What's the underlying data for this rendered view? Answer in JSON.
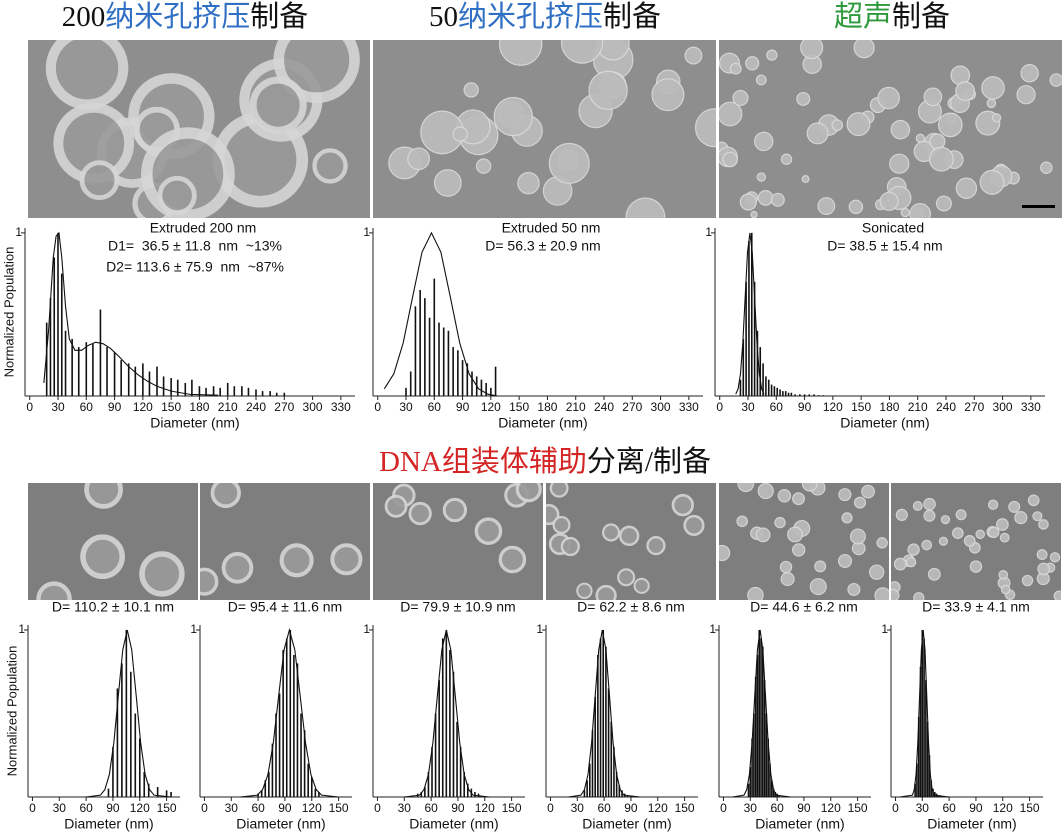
{
  "headers": [
    [
      {
        "text": "200",
        "color": "#111111"
      },
      {
        "text": "纳米孔挤压",
        "color": "#2f6fc4"
      },
      {
        "text": "制备",
        "color": "#111111"
      }
    ],
    [
      {
        "text": "50",
        "color": "#111111"
      },
      {
        "text": "纳米孔挤压",
        "color": "#2f6fc4"
      },
      {
        "text": "制备",
        "color": "#111111"
      }
    ],
    [
      {
        "text": "超声",
        "color": "#2e9a3c"
      },
      {
        "text": "制备",
        "color": "#111111"
      }
    ],
    [
      {
        "text": "DNA组装体辅助",
        "color": "#d42424"
      },
      {
        "text": "分离/制备",
        "color": "#111111"
      }
    ]
  ],
  "chart_data": [
    {
      "type": "bar",
      "title": "Extruded 200 nm",
      "annotations": [
        "D1=  36.5 ± 11.8  nm  ~13%",
        "D2= 113.6 ± 75.9  nm  ~87%"
      ],
      "annotation_color": "#d42424",
      "ylabel": "Normalized Population",
      "xlabel": "Diameter (nm)",
      "color": "#111111",
      "x": [
        18,
        22,
        26,
        30,
        34,
        38,
        45,
        52,
        60,
        67,
        75,
        82,
        90,
        97,
        105,
        112,
        120,
        127,
        135,
        142,
        150,
        157,
        165,
        172,
        180,
        187,
        195,
        202,
        210,
        217,
        225,
        232,
        240,
        247,
        255,
        262,
        270
      ],
      "values": [
        0.45,
        0.6,
        0.85,
        1,
        0.75,
        0.4,
        0.35,
        0.3,
        0.33,
        0.32,
        0.53,
        0.3,
        0.27,
        0.22,
        0.2,
        0.18,
        0.2,
        0.15,
        0.18,
        0.12,
        0.11,
        0.1,
        0.08,
        0.1,
        0.06,
        0.05,
        0.06,
        0.05,
        0.08,
        0.06,
        0.06,
        0.05,
        0.04,
        0.03,
        0.03,
        0.02,
        0.02
      ],
      "fit": {
        "type": "line",
        "x": [
          15,
          20,
          25,
          28,
          31,
          34,
          38,
          42,
          48,
          55,
          62,
          70,
          78,
          86,
          95,
          105,
          115,
          125,
          135,
          150,
          170,
          200
        ],
        "values": [
          0.08,
          0.4,
          0.85,
          0.98,
          1,
          0.85,
          0.55,
          0.35,
          0.28,
          0.28,
          0.31,
          0.33,
          0.32,
          0.29,
          0.24,
          0.18,
          0.13,
          0.09,
          0.06,
          0.03,
          0.01,
          0.005
        ]
      },
      "xlim": [
        -5,
        345
      ],
      "xticks": [
        0,
        30,
        60,
        90,
        120,
        150,
        180,
        210,
        240,
        270,
        300,
        330
      ],
      "ylim": [
        0,
        1.03
      ],
      "yticks": [
        1
      ]
    },
    {
      "type": "bar",
      "title": "Extruded 50 nm",
      "annotations": [
        "D= 56.3 ± 20.9 nm"
      ],
      "annotation_color": "#d42424",
      "xlabel": "Diameter (nm)",
      "color": "#111111",
      "x": [
        30,
        35,
        40,
        45,
        50,
        55,
        60,
        65,
        70,
        75,
        80,
        85,
        90,
        95,
        100,
        105,
        110,
        115,
        120,
        125
      ],
      "values": [
        0.05,
        0.15,
        0.55,
        0.65,
        0.6,
        0.48,
        0.72,
        0.45,
        0.42,
        0.4,
        0.3,
        0.28,
        0.22,
        0.2,
        0.15,
        0.12,
        0.1,
        0.08,
        0.05,
        0.18
      ],
      "fit": {
        "type": "line",
        "x": [
          7,
          17,
          27,
          37,
          47,
          57,
          67,
          77,
          87,
          97,
          107,
          117,
          127
        ],
        "values": [
          0.044,
          0.135,
          0.325,
          0.607,
          0.882,
          1,
          0.882,
          0.607,
          0.325,
          0.135,
          0.044,
          0.011,
          0
        ]
      },
      "xlim": [
        -5,
        345
      ],
      "xticks": [
        0,
        30,
        60,
        90,
        120,
        150,
        180,
        210,
        240,
        270,
        300,
        330
      ],
      "ylim": [
        0,
        1.03
      ],
      "yticks": [
        1
      ]
    },
    {
      "type": "bar",
      "title": "Sonicated",
      "annotations": [
        "D= 38.5 ± 15.4 nm"
      ],
      "annotation_color": "#d42424",
      "xlabel": "Diameter (nm)",
      "color": "#111111",
      "x": [
        22,
        25,
        28,
        31,
        34,
        37,
        40,
        43,
        46,
        49,
        52,
        55,
        58,
        61,
        64,
        67,
        70,
        73,
        76,
        80,
        85,
        90,
        95,
        100,
        105,
        110
      ],
      "values": [
        0.1,
        0.35,
        0.7,
        0.95,
        1,
        0.7,
        0.4,
        0.3,
        0.2,
        0.12,
        0.1,
        0.07,
        0.06,
        0.05,
        0.04,
        0.03,
        0.03,
        0.02,
        0.02,
        0.01,
        0.01,
        0.01,
        0.01,
        0.01,
        0.005,
        0.005
      ],
      "fit": {
        "type": "line",
        "x": [
          17,
          19.5,
          22,
          24.5,
          27,
          29.5,
          32,
          34.5,
          37,
          39.5,
          42,
          44.5,
          47
        ],
        "values": [
          0.011,
          0.044,
          0.135,
          0.325,
          0.607,
          0.882,
          1,
          0.882,
          0.607,
          0.325,
          0.135,
          0.044,
          0.011
        ]
      },
      "xlim": [
        -5,
        345
      ],
      "xticks": [
        0,
        30,
        60,
        90,
        120,
        150,
        180,
        210,
        240,
        270,
        300,
        330
      ],
      "ylim": [
        0,
        1.03
      ],
      "yticks": [
        1
      ]
    },
    {
      "type": "bar",
      "annotations": [
        "D= 110.2 ± 10.1 nm"
      ],
      "annotation_color": "#111111",
      "ylabel": "Normalized Population",
      "xlabel": "Diameter (nm)",
      "color": "#111111",
      "x": [
        85,
        90,
        95,
        100,
        105,
        110,
        115,
        120,
        125,
        130,
        140,
        150,
        155
      ],
      "values": [
        0.05,
        0.3,
        0.65,
        0.8,
        1,
        0.75,
        0.5,
        0.35,
        0.15,
        0.08,
        0.06,
        0.04,
        0.03
      ],
      "fit": {
        "type": "line",
        "x": [
          60,
          76,
          81,
          86,
          91,
          96,
          101,
          106,
          111,
          116,
          121,
          126,
          131,
          136,
          155
        ],
        "values": [
          0,
          0.011,
          0.044,
          0.135,
          0.325,
          0.607,
          0.882,
          1,
          0.882,
          0.607,
          0.325,
          0.135,
          0.044,
          0.011,
          0
        ]
      },
      "xlim": [
        -5,
        165
      ],
      "xticks": [
        0,
        30,
        60,
        90,
        120,
        150
      ],
      "ylim": [
        0,
        1.03
      ],
      "yticks": [
        1
      ]
    },
    {
      "type": "bar",
      "annotations": [
        "D= 95.4 ± 11.6 nm"
      ],
      "annotation_color": "#111111",
      "xlabel": "Diameter (nm)",
      "color": "#111111",
      "x": [
        60,
        64,
        68,
        72,
        76,
        80,
        84,
        88,
        92,
        96,
        100,
        104,
        108,
        112,
        116,
        120,
        124,
        128
      ],
      "values": [
        0.02,
        0.04,
        0.1,
        0.15,
        0.32,
        0.5,
        0.62,
        0.88,
        0.95,
        1,
        0.85,
        0.8,
        0.5,
        0.4,
        0.2,
        0.12,
        0.05,
        0.03
      ],
      "fit": {
        "type": "line",
        "x": [
          40,
          59,
          65,
          71,
          77,
          83,
          89,
          95,
          101,
          107,
          113,
          119,
          125,
          131,
          150
        ],
        "values": [
          0,
          0.011,
          0.044,
          0.135,
          0.325,
          0.607,
          0.882,
          1,
          0.882,
          0.607,
          0.325,
          0.135,
          0.044,
          0.011,
          0
        ]
      },
      "xlim": [
        -5,
        165
      ],
      "xticks": [
        0,
        30,
        60,
        90,
        120,
        150
      ],
      "ylim": [
        0,
        1.03
      ],
      "yticks": [
        1
      ]
    },
    {
      "type": "bar",
      "annotations": [
        "D= 79.9 ± 10.9 nm"
      ],
      "annotation_color": "#111111",
      "xlabel": "Diameter (nm)",
      "color": "#111111",
      "x": [
        45,
        49,
        53,
        57,
        61,
        65,
        69,
        73,
        77,
        81,
        85,
        89,
        93,
        97,
        101,
        105,
        109,
        113
      ],
      "values": [
        0.02,
        0.03,
        0.06,
        0.15,
        0.3,
        0.5,
        0.7,
        0.95,
        1,
        0.88,
        0.75,
        0.45,
        0.3,
        0.15,
        0.08,
        0.05,
        0.03,
        0.02
      ],
      "fit": {
        "type": "line",
        "x": [
          30,
          47,
          52,
          57,
          62,
          67,
          72,
          77,
          82,
          87,
          92,
          97,
          102,
          107,
          125
        ],
        "values": [
          0,
          0.011,
          0.044,
          0.135,
          0.325,
          0.607,
          0.882,
          1,
          0.882,
          0.607,
          0.325,
          0.135,
          0.044,
          0.011,
          0
        ]
      },
      "xlim": [
        -5,
        165
      ],
      "xticks": [
        0,
        30,
        60,
        90,
        120,
        150
      ],
      "ylim": [
        0,
        1.03
      ],
      "yticks": [
        1
      ]
    },
    {
      "type": "bar",
      "annotations": [
        "D= 62.2 ± 8.6 nm"
      ],
      "annotation_color": "#111111",
      "xlabel": "Diameter (nm)",
      "color": "#111111",
      "x": [
        38,
        41,
        44,
        47,
        50,
        53,
        56,
        59,
        62,
        65,
        68,
        71,
        74,
        77,
        80,
        83,
        86
      ],
      "values": [
        0.04,
        0.1,
        0.2,
        0.4,
        0.6,
        0.85,
        0.95,
        1,
        0.9,
        0.65,
        0.45,
        0.3,
        0.15,
        0.07,
        0.04,
        0.02,
        0.01
      ],
      "fit": {
        "type": "line",
        "x": [
          20,
          34,
          38,
          42,
          46,
          50,
          54,
          58,
          62,
          66,
          70,
          74,
          78,
          82,
          100
        ],
        "values": [
          0,
          0.011,
          0.044,
          0.135,
          0.325,
          0.607,
          0.882,
          1,
          0.882,
          0.607,
          0.325,
          0.135,
          0.044,
          0.011,
          0
        ]
      },
      "xlim": [
        -5,
        165
      ],
      "xticks": [
        0,
        30,
        60,
        90,
        120,
        150
      ],
      "ylim": [
        0,
        1.03
      ],
      "yticks": [
        1
      ]
    },
    {
      "type": "bar",
      "annotations": [
        "D= 44.6 ± 6.2 nm"
      ],
      "annotation_color": "#111111",
      "xlabel": "Diameter (nm)",
      "color": "#111111",
      "x": [
        28,
        30,
        32,
        34,
        36,
        38,
        40,
        42,
        44,
        46,
        48,
        50,
        52,
        54,
        56,
        58,
        60,
        62
      ],
      "values": [
        0.08,
        0.18,
        0.35,
        0.5,
        0.72,
        0.85,
        1,
        0.95,
        0.9,
        0.7,
        0.5,
        0.35,
        0.2,
        0.1,
        0.05,
        0.03,
        0.02,
        0.01
      ],
      "fit": {
        "type": "line",
        "x": [
          10,
          23,
          26,
          29,
          32,
          35,
          38,
          41,
          44,
          47,
          50,
          53,
          56,
          59,
          75
        ],
        "values": [
          0,
          0.011,
          0.044,
          0.135,
          0.325,
          0.607,
          0.882,
          1,
          0.882,
          0.607,
          0.325,
          0.135,
          0.044,
          0.011,
          0
        ]
      },
      "xlim": [
        -5,
        165
      ],
      "xticks": [
        0,
        30,
        60,
        90,
        120,
        150
      ],
      "ylim": [
        0,
        1.03
      ],
      "yticks": [
        1
      ]
    },
    {
      "type": "bar",
      "annotations": [
        "D= 33.9 ± 4.1 nm"
      ],
      "annotation_color": "#111111",
      "xlabel": "Diameter (nm)",
      "color": "#111111",
      "x": [
        22,
        24,
        26,
        28,
        30,
        32,
        34,
        36,
        38,
        40,
        42,
        44,
        46,
        48,
        50
      ],
      "values": [
        0.08,
        0.2,
        0.48,
        0.78,
        1,
        0.95,
        0.7,
        0.45,
        0.25,
        0.1,
        0.05,
        0.03,
        0.02,
        0.01,
        0.01
      ],
      "fit": {
        "type": "line",
        "x": [
          5,
          19,
          21,
          23,
          25,
          27,
          29,
          31,
          33,
          35,
          37,
          39,
          41,
          43,
          60
        ],
        "values": [
          0,
          0.011,
          0.044,
          0.135,
          0.325,
          0.607,
          0.882,
          1,
          0.882,
          0.607,
          0.325,
          0.135,
          0.044,
          0.011,
          0
        ]
      },
      "xlim": [
        -5,
        165
      ],
      "xticks": [
        0,
        30,
        60,
        90,
        120,
        150
      ],
      "ylim": [
        0,
        1.03
      ],
      "yticks": [
        1
      ]
    }
  ]
}
